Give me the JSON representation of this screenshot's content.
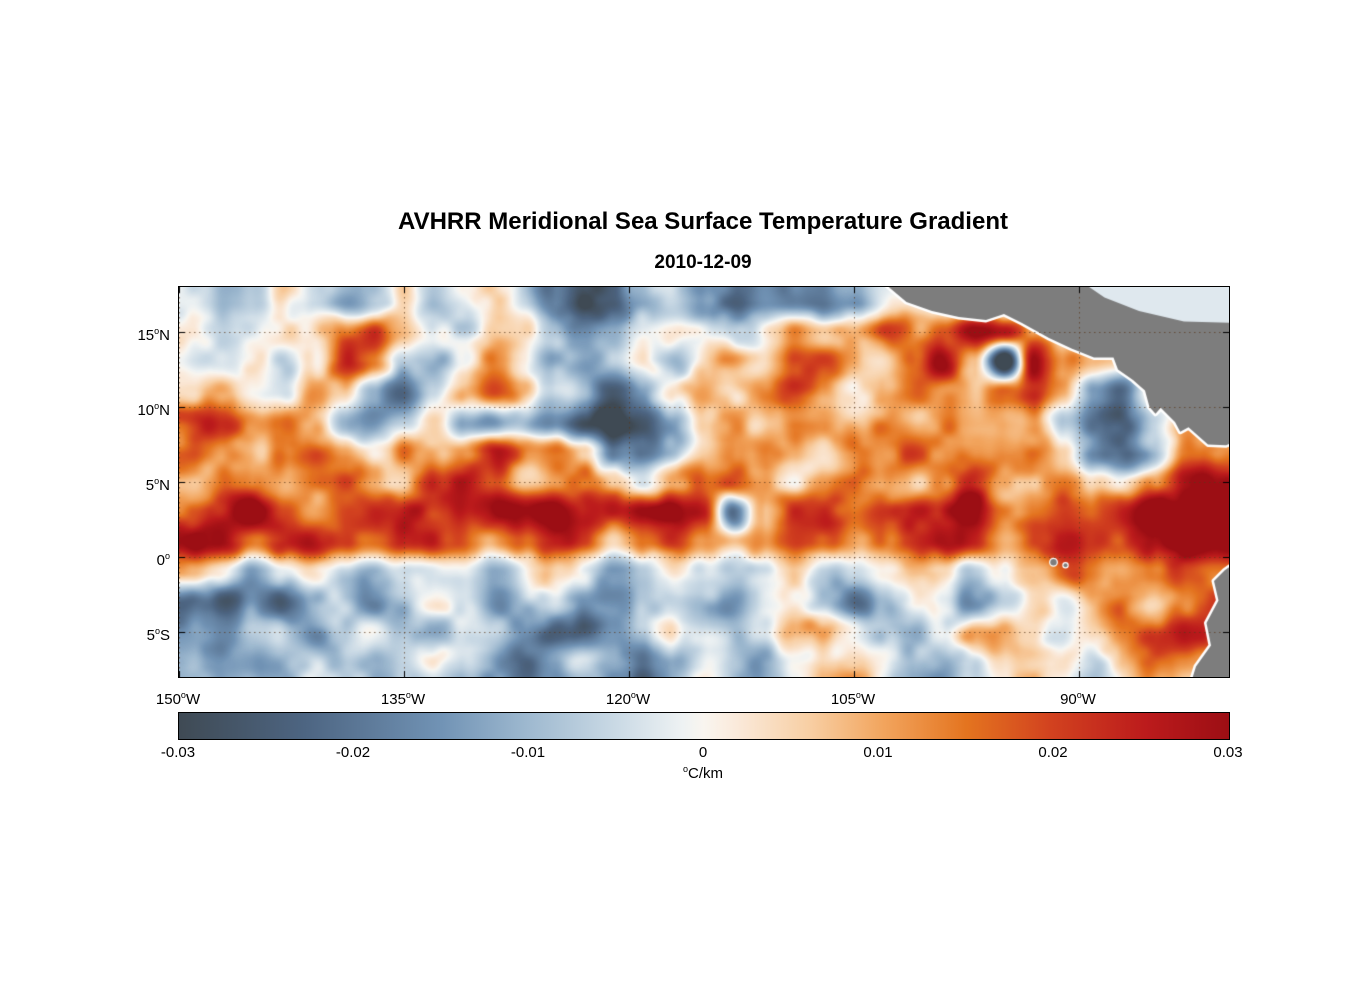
{
  "chart_data": {
    "type": "heatmap",
    "title": "AVHRR Meridional Sea Surface Temperature Gradient",
    "date": "2010-12-09",
    "grid_on": true,
    "x_axis": {
      "range": [
        -150,
        -80
      ],
      "ticks": [
        {
          "v": -150,
          "label": "150°W"
        },
        {
          "v": -135,
          "label": "135°W"
        },
        {
          "v": -120,
          "label": "120°W"
        },
        {
          "v": -105,
          "label": "105°W"
        },
        {
          "v": -90,
          "label": "90°W"
        }
      ]
    },
    "y_axis": {
      "range": [
        -8,
        18
      ],
      "ticks": [
        {
          "v": 15,
          "label": "15°N"
        },
        {
          "v": 10,
          "label": "10°N"
        },
        {
          "v": 5,
          "label": "5°N"
        },
        {
          "v": 0,
          "label": "0°"
        },
        {
          "v": -5,
          "label": "5°S"
        }
      ]
    },
    "colorbar": {
      "orientation": "horizontal",
      "min": -0.03,
      "max": 0.03,
      "tick_labels": [
        "-0.03",
        "-0.02",
        "-0.01",
        "0",
        "0.01",
        "0.02",
        "0.03"
      ],
      "unit": "°C/km",
      "stops": [
        {
          "t": 0.0,
          "c": "#3f4a54"
        },
        {
          "t": 0.12,
          "c": "#4d6582"
        },
        {
          "t": 0.25,
          "c": "#7193b5"
        },
        {
          "t": 0.33,
          "c": "#9db8cf"
        },
        {
          "t": 0.42,
          "c": "#ccdbe6"
        },
        {
          "t": 0.48,
          "c": "#eef2f3"
        },
        {
          "t": 0.5,
          "c": "#f9f5ef"
        },
        {
          "t": 0.53,
          "c": "#faeadb"
        },
        {
          "t": 0.6,
          "c": "#f8cfa4"
        },
        {
          "t": 0.67,
          "c": "#f2a55e"
        },
        {
          "t": 0.75,
          "c": "#e4741f"
        },
        {
          "t": 0.83,
          "c": "#d2421f"
        },
        {
          "t": 0.92,
          "c": "#bc1b1c"
        },
        {
          "t": 1.0,
          "c": "#9c0e14"
        }
      ]
    },
    "field": {
      "units": "°C/km",
      "lon_min": -149,
      "lon_step": 2,
      "n_lon": 35,
      "lat_max": 17,
      "lat_step": -2,
      "n_lat": 13,
      "values": [
        [
          -0.004,
          -0.01,
          -0.004,
          0.002,
          -0.006,
          -0.012,
          -0.006,
          0.004,
          -0.008,
          -0.004,
          0.002,
          -0.004,
          -0.015,
          -0.025,
          -0.022,
          -0.01,
          -0.004,
          -0.012,
          -0.018,
          -0.01,
          -0.015,
          -0.02,
          -0.012,
          0.0,
          0.001,
          0.001,
          0.001,
          0.001,
          0.001,
          0.001,
          0.001,
          0.001,
          0.001,
          0.001,
          0.001
        ],
        [
          0.002,
          -0.004,
          0.003,
          0.008,
          0.004,
          0.015,
          0.022,
          0.01,
          0.003,
          -0.003,
          0.004,
          0.002,
          -0.006,
          -0.012,
          -0.008,
          0.003,
          0.006,
          0.002,
          -0.004,
          0.004,
          0.008,
          0.004,
          0.01,
          0.015,
          0.008,
          0.018,
          0.028,
          0.024,
          0.01,
          0.002,
          0.0,
          0.0,
          0.0,
          0.0,
          0.0
        ],
        [
          -0.006,
          -0.002,
          0.004,
          -0.005,
          0.006,
          0.018,
          0.012,
          -0.008,
          -0.015,
          -0.006,
          0.008,
          0.003,
          -0.01,
          -0.018,
          -0.006,
          0.002,
          -0.008,
          0.004,
          0.01,
          0.006,
          0.012,
          0.018,
          0.01,
          0.004,
          0.012,
          0.025,
          0.01,
          -0.028,
          0.024,
          0.012,
          0.004,
          0.0,
          0.0,
          0.0,
          0.0
        ],
        [
          0.003,
          0.008,
          0.002,
          -0.004,
          0.01,
          0.005,
          -0.01,
          -0.016,
          -0.008,
          0.006,
          0.014,
          0.006,
          -0.004,
          -0.01,
          -0.02,
          -0.014,
          0.004,
          0.012,
          0.006,
          0.014,
          0.02,
          0.016,
          0.006,
          0.012,
          0.018,
          0.012,
          0.006,
          0.016,
          0.022,
          0.01,
          -0.012,
          -0.02,
          0.0,
          0.0,
          0.0
        ],
        [
          0.022,
          0.018,
          0.012,
          0.016,
          0.008,
          -0.006,
          -0.012,
          -0.006,
          0.004,
          -0.01,
          -0.018,
          -0.008,
          -0.014,
          -0.024,
          -0.028,
          -0.02,
          -0.008,
          0.006,
          0.012,
          0.008,
          0.014,
          0.01,
          0.004,
          0.01,
          0.006,
          0.012,
          0.008,
          0.014,
          0.01,
          -0.008,
          -0.022,
          -0.026,
          -0.012,
          0.004,
          0.008
        ],
        [
          0.018,
          0.01,
          0.004,
          0.01,
          0.016,
          0.008,
          0.002,
          0.012,
          0.006,
          0.01,
          0.018,
          0.012,
          0.016,
          0.006,
          -0.012,
          -0.018,
          -0.01,
          0.004,
          0.012,
          0.018,
          0.01,
          0.004,
          0.012,
          0.008,
          0.014,
          0.01,
          0.006,
          0.012,
          0.016,
          0.008,
          -0.014,
          -0.018,
          -0.008,
          0.006,
          0.012
        ],
        [
          0.01,
          0.016,
          0.008,
          0.004,
          0.012,
          0.018,
          0.01,
          0.006,
          0.016,
          0.02,
          0.012,
          0.004,
          0.01,
          0.014,
          0.006,
          -0.004,
          0.008,
          0.014,
          0.02,
          0.012,
          0.006,
          0.014,
          0.018,
          0.01,
          0.004,
          0.01,
          0.016,
          0.008,
          0.012,
          0.018,
          0.01,
          0.004,
          0.012,
          0.018,
          0.022
        ],
        [
          0.015,
          0.02,
          0.025,
          0.018,
          0.012,
          0.022,
          0.028,
          0.024,
          0.016,
          0.022,
          0.028,
          0.024,
          0.028,
          0.022,
          0.016,
          0.024,
          0.028,
          0.022,
          -0.018,
          0.01,
          0.028,
          0.022,
          0.016,
          0.022,
          0.026,
          0.02,
          0.024,
          0.018,
          0.022,
          0.026,
          0.02,
          0.024,
          0.028,
          0.022,
          0.026
        ],
        [
          0.024,
          0.018,
          0.012,
          0.02,
          0.026,
          0.018,
          0.012,
          0.02,
          0.026,
          0.018,
          0.01,
          0.016,
          0.022,
          0.014,
          0.008,
          0.014,
          0.02,
          0.012,
          0.006,
          0.014,
          0.02,
          0.012,
          0.006,
          0.014,
          0.022,
          0.026,
          0.02,
          0.014,
          0.02,
          0.026,
          0.022,
          0.016,
          0.022,
          0.028,
          0.024
        ],
        [
          0.004,
          -0.002,
          -0.008,
          -0.004,
          0.002,
          -0.006,
          -0.01,
          -0.004,
          0.002,
          -0.006,
          -0.012,
          -0.006,
          0.002,
          -0.004,
          -0.01,
          -0.004,
          0.002,
          -0.006,
          -0.01,
          -0.004,
          0.002,
          -0.006,
          -0.002,
          0.004,
          0.008,
          0.004,
          -0.004,
          0.004,
          0.01,
          0.016,
          0.012,
          0.008,
          0.014,
          0.02,
          0.016
        ],
        [
          -0.018,
          -0.022,
          -0.014,
          -0.018,
          -0.01,
          -0.004,
          -0.012,
          -0.006,
          0.004,
          -0.008,
          -0.014,
          -0.008,
          -0.004,
          -0.012,
          -0.018,
          -0.01,
          -0.004,
          -0.01,
          -0.016,
          -0.008,
          -0.002,
          -0.01,
          -0.014,
          -0.006,
          0.002,
          -0.006,
          -0.012,
          -0.004,
          0.004,
          -0.006,
          0.006,
          0.012,
          0.006,
          0.016,
          0.02
        ],
        [
          -0.01,
          -0.014,
          -0.008,
          -0.004,
          -0.012,
          -0.006,
          0.002,
          -0.008,
          -0.014,
          -0.008,
          -0.002,
          -0.01,
          -0.018,
          -0.022,
          -0.014,
          -0.006,
          0.004,
          -0.004,
          -0.01,
          -0.004,
          0.006,
          0.01,
          0.004,
          -0.004,
          -0.01,
          -0.004,
          0.008,
          0.012,
          0.006,
          -0.004,
          0.004,
          0.01,
          0.016,
          0.022,
          0.018
        ],
        [
          -0.006,
          -0.01,
          -0.014,
          -0.008,
          -0.002,
          -0.008,
          -0.012,
          -0.006,
          0.002,
          -0.006,
          -0.012,
          -0.016,
          -0.01,
          -0.004,
          -0.01,
          -0.014,
          -0.008,
          -0.002,
          -0.008,
          -0.012,
          -0.006,
          0.002,
          0.008,
          0.002,
          -0.006,
          -0.01,
          -0.004,
          0.006,
          0.01,
          0.004,
          -0.004,
          0.008,
          0.014,
          0.01,
          0.006
        ]
      ]
    },
    "land": {
      "color": "#7d7d7d",
      "coast_halo": "#ffffff",
      "sea_overlay_color": "#dfe8ee",
      "polygons": {
        "central_america": [
          [
            -103.4,
            18.6
          ],
          [
            -101.5,
            17.0
          ],
          [
            -99.8,
            16.4
          ],
          [
            -98.0,
            16.0
          ],
          [
            -96.2,
            15.8
          ],
          [
            -95.0,
            16.2
          ],
          [
            -93.8,
            15.6
          ],
          [
            -92.0,
            14.6
          ],
          [
            -90.5,
            13.9
          ],
          [
            -89.0,
            13.3
          ],
          [
            -87.7,
            13.3
          ],
          [
            -87.4,
            12.5
          ],
          [
            -86.4,
            11.8
          ],
          [
            -85.6,
            11.1
          ],
          [
            -85.3,
            10.0
          ],
          [
            -84.9,
            9.55
          ],
          [
            -84.55,
            9.95
          ],
          [
            -83.6,
            9.0
          ],
          [
            -83.25,
            8.35
          ],
          [
            -82.7,
            8.65
          ],
          [
            -81.4,
            7.5
          ],
          [
            -80.2,
            7.45
          ],
          [
            -79.3,
            7.8
          ],
          [
            -79.3,
            18.6
          ]
        ],
        "caribbean_sea_overlay": [
          [
            -90.2,
            18.6
          ],
          [
            -79.3,
            18.6
          ],
          [
            -79.3,
            15.6
          ],
          [
            -83.0,
            15.7
          ],
          [
            -86.0,
            16.4
          ],
          [
            -88.3,
            17.3
          ]
        ],
        "south_america": [
          [
            -79.3,
            -0.2
          ],
          [
            -80.3,
            -0.9
          ],
          [
            -81.0,
            -1.6
          ],
          [
            -80.7,
            -2.9
          ],
          [
            -81.5,
            -4.4
          ],
          [
            -81.2,
            -5.9
          ],
          [
            -82.2,
            -7.3
          ],
          [
            -82.6,
            -8.6
          ],
          [
            -79.3,
            -8.6
          ]
        ],
        "galapagos_points": [
          [
            -91.7,
            -0.35
          ],
          [
            -90.9,
            -0.55
          ]
        ]
      }
    }
  }
}
